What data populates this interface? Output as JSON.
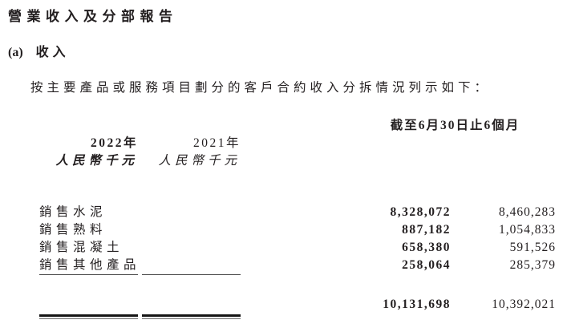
{
  "document": {
    "title": "營業收入及分部報告",
    "section": {
      "prefix": "(a)",
      "label": "收入"
    },
    "intro": "按主要產品或服務項目劃分的客戶合約收入分拆情況列示如下："
  },
  "table": {
    "period_header": "截至6月30日止6個月",
    "columns": [
      {
        "year": "2022年",
        "unit": "人民幣千元"
      },
      {
        "year": "2021年",
        "unit": "人民幣千元"
      }
    ],
    "rows": [
      {
        "label": "銷售水泥",
        "y2022": "8,328,072",
        "y2021": "8,460,283"
      },
      {
        "label": "銷售熟料",
        "y2022": "887,182",
        "y2021": "1,054,833"
      },
      {
        "label": "銷售混凝土",
        "y2022": "658,380",
        "y2021": "591,526"
      },
      {
        "label": "銷售其他產品",
        "y2022": "258,064",
        "y2021": "285,379"
      }
    ],
    "total": {
      "y2022": "10,131,698",
      "y2021": "10,392,021"
    }
  },
  "colors": {
    "text": "#231f20",
    "single_rule": "#4a4a4a",
    "double_rule_top": "#151515",
    "double_rule_bottom": "#6e6e6e",
    "background": "#ffffff"
  }
}
